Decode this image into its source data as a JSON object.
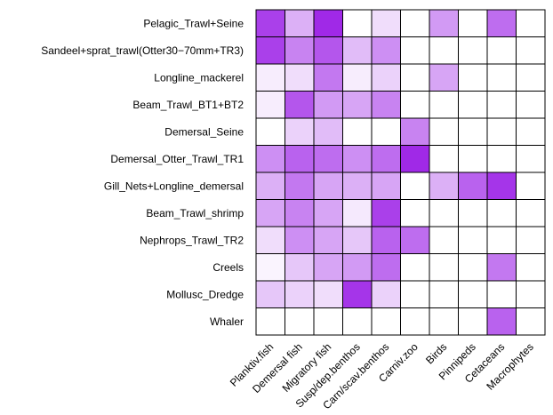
{
  "chart_data": {
    "type": "heatmap",
    "title": "",
    "xlabel": "",
    "ylabel": "",
    "color_scale": {
      "low": "#ffffff",
      "high": "#9b1ee6"
    },
    "rows": [
      "Pelagic_Trawl+Seine",
      "Sandeel+sprat_trawl(Otter30−70mm+TR3)",
      "Longline_mackerel",
      "Beam_Trawl_BT1+BT2",
      "Demersal_Seine",
      "Demersal_Otter_Trawl_TR1",
      "Gill_Nets+Longline_demersal",
      "Beam_Trawl_shrimp",
      "Nephrops_Trawl_TR2",
      "Creels",
      "Mollusc_Dredge",
      "Whaler"
    ],
    "columns": [
      "Planktiv.fish",
      "Demersal fish",
      "Migratory fish",
      "Susp/dep.benthos",
      "Carn/scav.benthos",
      "Carniv.zoo",
      "Birds",
      "Pinnipeds",
      "Cetaceans",
      "Macrophytes"
    ],
    "values": [
      [
        0.85,
        0.35,
        0.95,
        0.0,
        0.15,
        0.0,
        0.45,
        0.0,
        0.65,
        0.0
      ],
      [
        0.85,
        0.55,
        0.75,
        0.3,
        0.5,
        0.0,
        0.0,
        0.0,
        0.0,
        0.0
      ],
      [
        0.08,
        0.15,
        0.6,
        0.08,
        0.2,
        0.0,
        0.4,
        0.0,
        0.0,
        0.0
      ],
      [
        0.08,
        0.75,
        0.45,
        0.4,
        0.55,
        0.0,
        0.0,
        0.0,
        0.0,
        0.0
      ],
      [
        0.0,
        0.2,
        0.3,
        0.0,
        0.0,
        0.55,
        0.0,
        0.0,
        0.0,
        0.0
      ],
      [
        0.5,
        0.7,
        0.65,
        0.5,
        0.65,
        0.95,
        0.0,
        0.0,
        0.0,
        0.0
      ],
      [
        0.35,
        0.6,
        0.4,
        0.35,
        0.4,
        0.0,
        0.35,
        0.7,
        0.9,
        0.0
      ],
      [
        0.4,
        0.55,
        0.4,
        0.1,
        0.85,
        0.0,
        0.0,
        0.0,
        0.0,
        0.0
      ],
      [
        0.15,
        0.5,
        0.4,
        0.25,
        0.7,
        0.65,
        0.0,
        0.0,
        0.0,
        0.0
      ],
      [
        0.05,
        0.25,
        0.4,
        0.45,
        0.65,
        0.0,
        0.0,
        0.0,
        0.6,
        0.0
      ],
      [
        0.25,
        0.2,
        0.15,
        0.9,
        0.2,
        0.0,
        0.0,
        0.0,
        0.0,
        0.0
      ],
      [
        0.0,
        0.0,
        0.0,
        0.0,
        0.0,
        0.0,
        0.0,
        0.0,
        0.7,
        0.0
      ]
    ]
  }
}
